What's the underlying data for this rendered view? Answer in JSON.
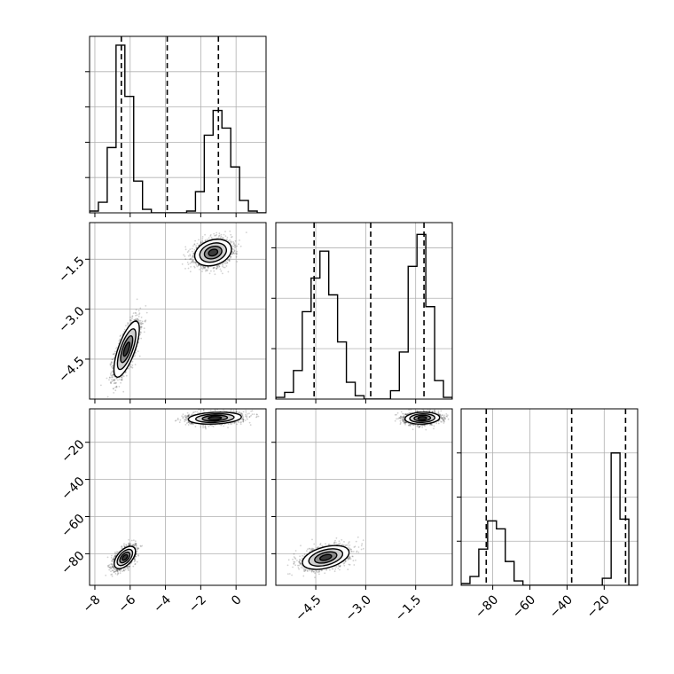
{
  "chart_data": {
    "type": "corner",
    "title": "",
    "parameters": [
      "",
      "",
      ""
    ],
    "variables": [
      {
        "range": [
          -8.3,
          1.7
        ],
        "ticks": [
          -8,
          -6,
          -4,
          -2,
          0
        ],
        "tick_labels": [
          "−8",
          "−6",
          "−4",
          "−2",
          "0"
        ]
      },
      {
        "range": [
          -5.7,
          -0.4
        ],
        "ticks": [
          -4.5,
          -3.0,
          -1.5
        ],
        "tick_labels": [
          "−4.5",
          "−3.0",
          "−1.5"
        ]
      },
      {
        "range": [
          -97,
          -2
        ],
        "ticks": [
          -80,
          -60,
          -40,
          -20
        ],
        "tick_labels": [
          "−80",
          "−60",
          "−40",
          "−20"
        ]
      }
    ],
    "histograms": [
      {
        "variable": 0,
        "bin_edges": [
          -8.3,
          -7.8,
          -7.3,
          -6.8,
          -6.3,
          -5.8,
          -5.3,
          -4.8,
          -4.3,
          -3.8,
          -3.3,
          -2.8,
          -2.3,
          -1.8,
          -1.3,
          -0.8,
          -0.3,
          0.2,
          0.7,
          1.2,
          1.7
        ],
        "counts": [
          0.01,
          0.06,
          0.37,
          0.95,
          0.66,
          0.18,
          0.02,
          0,
          0,
          0,
          0,
          0.01,
          0.12,
          0.44,
          0.58,
          0.48,
          0.26,
          0.07,
          0.01,
          0
        ],
        "ymax": 1.0,
        "yticks": [
          0.2,
          0.4,
          0.6,
          0.8
        ],
        "quantiles": [
          -6.5,
          -3.9,
          -1.0
        ]
      },
      {
        "variable": 1,
        "bin_edges": [
          -5.7,
          -5.435,
          -5.17,
          -4.905,
          -4.64,
          -4.375,
          -4.11,
          -3.845,
          -3.58,
          -3.315,
          -3.05,
          -2.785,
          -2.52,
          -2.255,
          -1.99,
          -1.725,
          -1.46,
          -1.195,
          -0.93,
          -0.665,
          -0.4
        ],
        "counts": [
          0.01,
          0.04,
          0.17,
          0.52,
          0.72,
          0.88,
          0.62,
          0.34,
          0.1,
          0.02,
          0,
          0,
          0,
          0.05,
          0.28,
          0.79,
          0.98,
          0.55,
          0.11,
          0.01
        ],
        "ymax": 1.05,
        "yticks": [
          0.3,
          0.6,
          0.9
        ],
        "quantiles": [
          -4.55,
          -2.85,
          -1.25
        ]
      },
      {
        "variable": 2,
        "bin_edges": [
          -97,
          -92.25,
          -87.5,
          -82.75,
          -78,
          -73.25,
          -68.5,
          -63.75,
          -59,
          -54.25,
          -49.5,
          -44.75,
          -40,
          -35.25,
          -30.5,
          -25.75,
          -21,
          -16.25,
          -11.5,
          -6.75,
          -2
        ],
        "counts": [
          0.02,
          0.1,
          0.41,
          0.73,
          0.64,
          0.27,
          0.05,
          0,
          0,
          0,
          0,
          0,
          0,
          0,
          0,
          0,
          0.08,
          1.5,
          0.75,
          0
        ],
        "ymax": 2.0,
        "yticks": [
          0.5,
          1.0,
          1.5
        ],
        "quantiles": [
          -83.5,
          -37.5,
          -8.5
        ]
      }
    ],
    "scatter_panels": [
      {
        "x": 0,
        "y": 1,
        "modes": [
          {
            "center": [
              -6.2,
              -4.2
            ],
            "sd_x": 0.36,
            "sd_y": 0.42,
            "corr": 0.72,
            "n": 1700
          },
          {
            "center": [
              -1.3,
              -1.3
            ],
            "sd_x": 0.52,
            "sd_y": 0.2,
            "corr": 0.25,
            "n": 1700
          }
        ]
      },
      {
        "x": 0,
        "y": 2,
        "modes": [
          {
            "center": [
              -6.3,
              -82
            ],
            "sd_x": 0.3,
            "sd_y": 3.0,
            "corr": 0.55,
            "n": 1700
          },
          {
            "center": [
              -1.2,
              -7
            ],
            "sd_x": 0.75,
            "sd_y": 1.6,
            "corr": 0.2,
            "n": 1700
          }
        ]
      },
      {
        "x": 1,
        "y": 2,
        "modes": [
          {
            "center": [
              -4.2,
              -82
            ],
            "sd_x": 0.35,
            "sd_y": 3.2,
            "corr": 0.42,
            "n": 1700
          },
          {
            "center": [
              -1.3,
              -7
            ],
            "sd_x": 0.26,
            "sd_y": 1.6,
            "corr": 0.1,
            "n": 1700
          }
        ]
      }
    ]
  }
}
